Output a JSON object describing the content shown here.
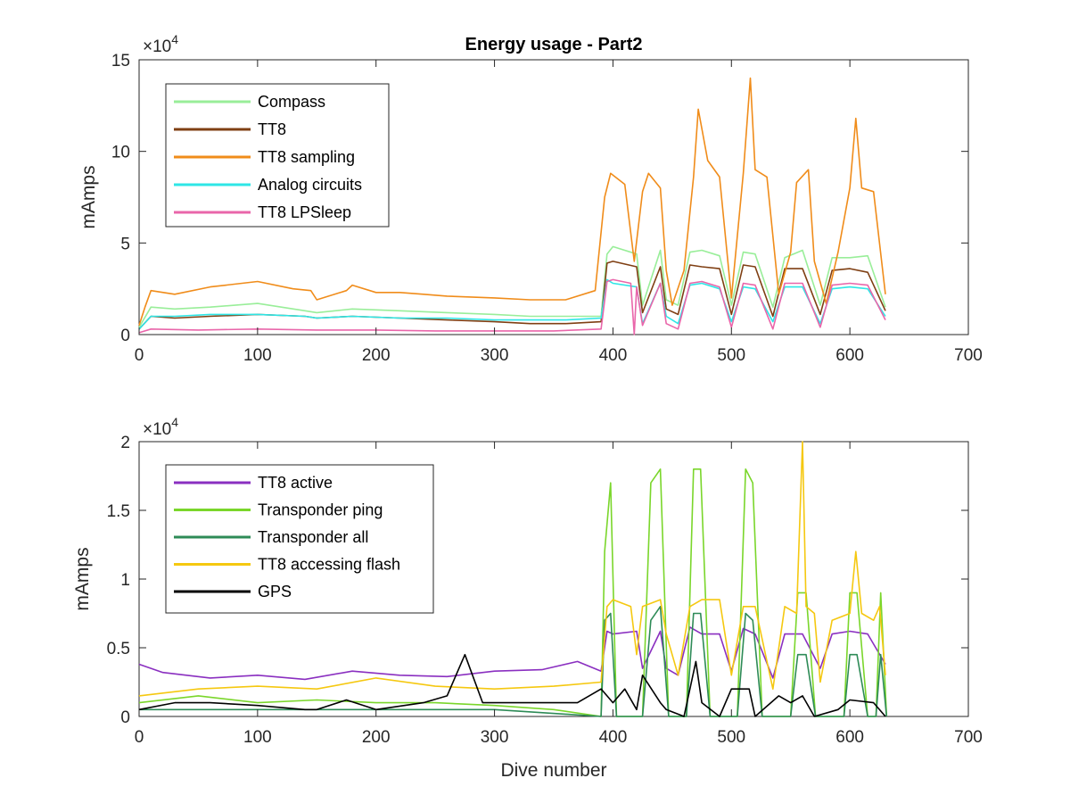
{
  "figure": {
    "xlabel": "Dive number",
    "charts": [
      {
        "type": "line",
        "title": "Energy usage - Part2",
        "ylabel": "mAmps",
        "exponent": {
          "base": "×10",
          "power": "4"
        },
        "xlim": [
          0,
          700
        ],
        "ylim": [
          0,
          15
        ],
        "xticks": [
          "0",
          "100",
          "200",
          "300",
          "400",
          "500",
          "600",
          "700"
        ],
        "yticks": [
          "0",
          "5",
          "10",
          "15"
        ],
        "ytick_values": [
          0,
          5,
          10,
          15
        ],
        "legend_placement": "top-left",
        "series": [
          {
            "name": "Compass",
            "color": "#99ee99",
            "x": [
              0,
              10,
              30,
              60,
              100,
              140,
              150,
              180,
              220,
              260,
              300,
              330,
              360,
              390,
              395,
              400,
              420,
              425,
              440,
              445,
              455,
              465,
              475,
              490,
              500,
              510,
              520,
              535,
              545,
              560,
              575,
              585,
              600,
              615,
              630
            ],
            "values": [
              0.4,
              1.5,
              1.4,
              1.5,
              1.7,
              1.3,
              1.2,
              1.4,
              1.3,
              1.2,
              1.1,
              1.0,
              1.0,
              1.0,
              4.4,
              4.8,
              4.4,
              1.6,
              4.6,
              1.9,
              1.6,
              4.5,
              4.6,
              4.3,
              1.6,
              4.5,
              4.4,
              1.5,
              4.2,
              4.6,
              1.6,
              4.2,
              4.2,
              4.3,
              1.5
            ]
          },
          {
            "name": "TT8",
            "color": "#7f3f13",
            "x": [
              0,
              10,
              30,
              60,
              100,
              140,
              150,
              180,
              220,
              260,
              300,
              330,
              360,
              390,
              395,
              400,
              420,
              425,
              440,
              445,
              455,
              465,
              475,
              490,
              500,
              510,
              520,
              535,
              545,
              560,
              575,
              585,
              600,
              615,
              630
            ],
            "values": [
              0.3,
              1.0,
              0.9,
              1.0,
              1.1,
              1.0,
              0.9,
              1.0,
              0.9,
              0.8,
              0.7,
              0.6,
              0.6,
              0.7,
              3.9,
              4.0,
              3.7,
              1.2,
              3.7,
              1.4,
              1.1,
              3.8,
              3.7,
              3.6,
              1.1,
              3.8,
              3.7,
              1.0,
              3.6,
              3.6,
              1.1,
              3.5,
              3.6,
              3.4,
              1.3
            ]
          },
          {
            "name": "TT8 sampling",
            "color": "#f08c1a",
            "x": [
              0,
              5,
              10,
              30,
              60,
              100,
              130,
              145,
              150,
              175,
              180,
              200,
              220,
              240,
              260,
              300,
              330,
              360,
              385,
              393,
              398,
              410,
              418,
              425,
              430,
              440,
              445,
              450,
              460,
              468,
              472,
              480,
              490,
              500,
              510,
              516,
              520,
              530,
              540,
              550,
              555,
              565,
              570,
              580,
              590,
              600,
              605,
              610,
              620,
              630
            ],
            "values": [
              0.5,
              1.5,
              2.4,
              2.2,
              2.6,
              2.9,
              2.5,
              2.4,
              1.9,
              2.4,
              2.7,
              2.3,
              2.3,
              2.2,
              2.1,
              2.0,
              1.9,
              1.9,
              2.4,
              7.5,
              8.8,
              8.2,
              4.0,
              7.8,
              8.8,
              8.0,
              3.5,
              1.6,
              3.5,
              8.6,
              12.3,
              9.5,
              8.6,
              2.0,
              8.8,
              14.0,
              9.0,
              8.6,
              2.2,
              4.5,
              8.3,
              9.0,
              4.0,
              1.7,
              4.5,
              8.0,
              11.8,
              8.0,
              7.8,
              2.2
            ]
          },
          {
            "name": "Analog circuits",
            "color": "#2ee6e6",
            "x": [
              0,
              10,
              30,
              60,
              100,
              140,
              150,
              180,
              220,
              260,
              300,
              330,
              360,
              390,
              395,
              400,
              420,
              425,
              440,
              445,
              455,
              465,
              475,
              490,
              500,
              510,
              520,
              535,
              545,
              560,
              575,
              585,
              600,
              615,
              630
            ],
            "values": [
              0.3,
              1.0,
              1.0,
              1.1,
              1.1,
              1.0,
              0.9,
              1.0,
              0.9,
              0.9,
              0.8,
              0.8,
              0.8,
              0.9,
              3.0,
              2.8,
              2.6,
              0.6,
              2.8,
              1.0,
              0.6,
              2.7,
              2.8,
              2.5,
              0.7,
              2.6,
              2.5,
              0.7,
              2.6,
              2.6,
              0.6,
              2.5,
              2.6,
              2.5,
              1.0
            ]
          },
          {
            "name": "TT8 LPSleep",
            "color": "#e966aa",
            "x": [
              0,
              10,
              50,
              100,
              150,
              200,
              250,
              300,
              350,
              390,
              395,
              400,
              415,
              418,
              420,
              425,
              440,
              445,
              455,
              465,
              475,
              490,
              500,
              510,
              520,
              535,
              545,
              560,
              575,
              585,
              600,
              615,
              630
            ],
            "values": [
              0.1,
              0.3,
              0.25,
              0.3,
              0.25,
              0.25,
              0.2,
              0.2,
              0.2,
              0.3,
              2.9,
              3.0,
              2.8,
              0.0,
              2.6,
              0.5,
              2.8,
              0.6,
              0.3,
              2.8,
              2.9,
              2.6,
              0.4,
              2.8,
              2.7,
              0.3,
              2.8,
              2.8,
              0.4,
              2.7,
              2.8,
              2.7,
              0.8
            ]
          }
        ]
      },
      {
        "type": "line",
        "title": "",
        "ylabel": "mAmps",
        "exponent": {
          "base": "×10",
          "power": "4"
        },
        "xlim": [
          0,
          700
        ],
        "ylim": [
          0,
          2
        ],
        "xticks": [
          "0",
          "100",
          "200",
          "300",
          "400",
          "500",
          "600",
          "700"
        ],
        "yticks": [
          "0",
          "0.5",
          "1",
          "1.5",
          "2"
        ],
        "ytick_values": [
          0,
          0.5,
          1,
          1.5,
          2
        ],
        "legend_placement": "top-left",
        "series": [
          {
            "name": "TT8 active",
            "color": "#8a2fc0",
            "x": [
              0,
              20,
              60,
              100,
              140,
              180,
              220,
              260,
              300,
              340,
              370,
              390,
              395,
              400,
              420,
              425,
              440,
              445,
              455,
              465,
              475,
              490,
              500,
              510,
              520,
              535,
              545,
              560,
              575,
              585,
              600,
              615,
              630
            ],
            "values": [
              0.38,
              0.32,
              0.28,
              0.3,
              0.27,
              0.33,
              0.3,
              0.29,
              0.33,
              0.34,
              0.4,
              0.33,
              0.62,
              0.6,
              0.62,
              0.35,
              0.62,
              0.35,
              0.3,
              0.65,
              0.6,
              0.6,
              0.33,
              0.64,
              0.6,
              0.28,
              0.6,
              0.6,
              0.35,
              0.6,
              0.62,
              0.6,
              0.38
            ]
          },
          {
            "name": "Transponder ping",
            "color": "#7ad62b",
            "x": [
              0,
              50,
              100,
              150,
              200,
              250,
              300,
              350,
              390,
              393,
              398,
              403,
              425,
              432,
              440,
              447,
              462,
              468,
              474,
              482,
              505,
              512,
              518,
              526,
              550,
              556,
              563,
              571,
              595,
              600,
              606,
              615,
              622,
              626,
              631
            ],
            "values": [
              0.1,
              0.15,
              0.1,
              0.12,
              0.1,
              0.1,
              0.08,
              0.05,
              0.0,
              1.2,
              1.7,
              0.0,
              0.0,
              1.7,
              1.8,
              0.0,
              0.0,
              1.8,
              1.8,
              0.0,
              0.0,
              1.8,
              1.7,
              0.0,
              0.0,
              0.9,
              0.9,
              0.0,
              0.0,
              0.9,
              0.9,
              0.0,
              0.0,
              0.9,
              0.0
            ]
          },
          {
            "name": "Transponder all",
            "color": "#2e8b57",
            "x": [
              0,
              100,
              200,
              300,
              390,
              393,
              398,
              403,
              425,
              432,
              440,
              447,
              462,
              468,
              474,
              482,
              505,
              512,
              518,
              526,
              550,
              556,
              563,
              571,
              595,
              600,
              606,
              615,
              622,
              626,
              631
            ],
            "values": [
              0.05,
              0.05,
              0.05,
              0.05,
              0.0,
              0.7,
              0.75,
              0.0,
              0.0,
              0.7,
              0.8,
              0.0,
              0.0,
              0.75,
              0.75,
              0.0,
              0.0,
              0.75,
              0.7,
              0.0,
              0.0,
              0.45,
              0.45,
              0.0,
              0.0,
              0.45,
              0.45,
              0.0,
              0.0,
              0.45,
              0.0
            ]
          },
          {
            "name": "TT8 accessing flash",
            "color": "#f5c810",
            "x": [
              0,
              50,
              100,
              150,
              200,
              250,
              300,
              350,
              390,
              395,
              400,
              415,
              420,
              425,
              440,
              445,
              455,
              465,
              475,
              490,
              500,
              510,
              520,
              535,
              545,
              555,
              560,
              563,
              570,
              575,
              585,
              600,
              605,
              610,
              620,
              625,
              630
            ],
            "values": [
              0.15,
              0.2,
              0.22,
              0.2,
              0.28,
              0.22,
              0.2,
              0.22,
              0.25,
              0.8,
              0.85,
              0.8,
              0.45,
              0.8,
              0.85,
              0.6,
              0.3,
              0.8,
              0.85,
              0.85,
              0.3,
              0.8,
              0.8,
              0.2,
              0.8,
              0.75,
              2.0,
              0.8,
              0.75,
              0.25,
              0.7,
              0.75,
              1.2,
              0.75,
              0.7,
              0.8,
              0.3
            ]
          },
          {
            "name": "GPS",
            "color": "#000000",
            "x": [
              0,
              30,
              60,
              100,
              140,
              150,
              175,
              200,
              240,
              260,
              275,
              290,
              330,
              370,
              390,
              395,
              400,
              410,
              420,
              425,
              440,
              445,
              460,
              470,
              475,
              490,
              500,
              515,
              520,
              540,
              550,
              560,
              570,
              590,
              600,
              620,
              630
            ],
            "values": [
              0.05,
              0.1,
              0.1,
              0.08,
              0.05,
              0.05,
              0.12,
              0.05,
              0.1,
              0.15,
              0.45,
              0.1,
              0.1,
              0.1,
              0.2,
              0.15,
              0.1,
              0.2,
              0.05,
              0.3,
              0.1,
              0.05,
              0.0,
              0.4,
              0.1,
              0.0,
              0.2,
              0.2,
              0.0,
              0.15,
              0.1,
              0.15,
              0.0,
              0.05,
              0.12,
              0.1,
              0.0
            ]
          }
        ]
      }
    ]
  }
}
